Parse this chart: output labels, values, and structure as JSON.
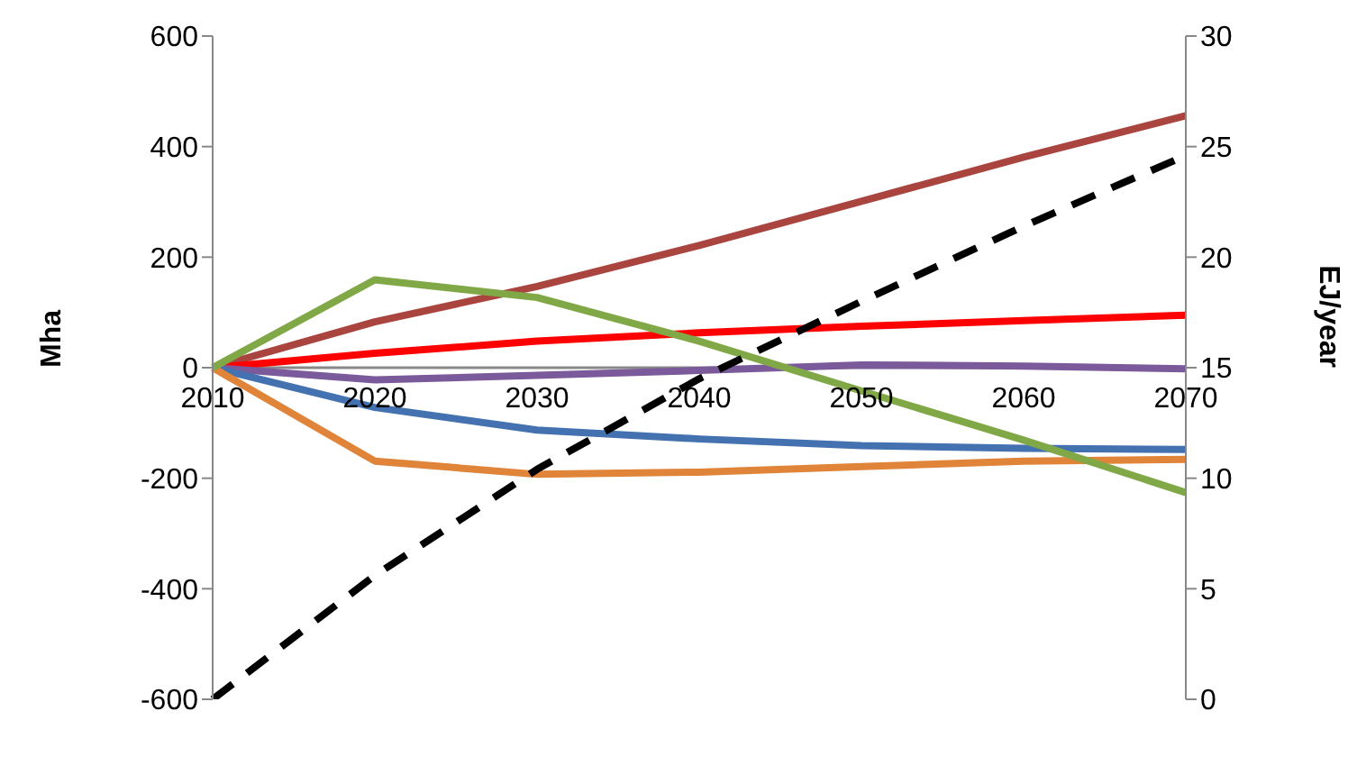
{
  "chart_data": {
    "type": "line",
    "ylabel": "Mha",
    "y2label": "EJ/year",
    "categories": [
      "2010",
      "2020",
      "2030",
      "2040",
      "2050",
      "2060",
      "2070"
    ],
    "series": [
      {
        "color": "#a9443f",
        "values": [
          0,
          83,
          147,
          221,
          301,
          381,
          456
        ]
      },
      {
        "color": "#ff0000",
        "values": [
          0,
          26,
          48,
          63,
          75,
          85,
          95
        ]
      },
      {
        "color": "#7a5a9a",
        "values": [
          0,
          -22,
          -14,
          -5,
          5,
          3,
          -2
        ]
      },
      {
        "color": "#4472b0",
        "values": [
          0,
          -72,
          -113,
          -129,
          -141,
          -146,
          -148
        ]
      },
      {
        "color": "#e0843a",
        "values": [
          0,
          -169,
          -193,
          -189,
          -179,
          -169,
          -166
        ]
      },
      {
        "color": "#80a846",
        "values": [
          0,
          159,
          127,
          48,
          -42,
          -131,
          -226
        ]
      },
      {
        "color": "#000000",
        "axis": "y2",
        "line_style": "dashed",
        "values": [
          0,
          5.6,
          10.4,
          14.5,
          18.0,
          21.4,
          24.6
        ]
      }
    ],
    "ylim": [
      -600,
      600
    ],
    "yticks": [
      -600,
      -400,
      -200,
      0,
      200,
      400,
      600
    ],
    "y2lim": [
      0,
      30
    ],
    "y2ticks": [
      0,
      5,
      10,
      15,
      20,
      25,
      30
    ],
    "legend": false,
    "marker": "none"
  }
}
